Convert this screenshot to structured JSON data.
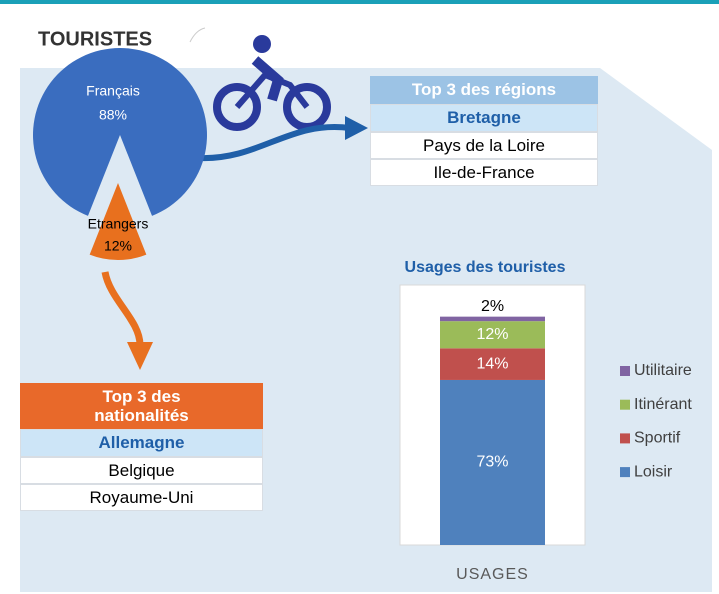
{
  "title": "TOURISTES",
  "regions": {
    "title": "Top 3 des régions",
    "rows": [
      "Bretagne",
      "Pays de la Loire",
      "Ile-de-France"
    ]
  },
  "nationalities": {
    "title": "Top 3 des nationalités",
    "rows": [
      "Allemagne",
      "Belgique",
      "Royaume-Uni"
    ]
  },
  "chart_data": [
    {
      "type": "pie",
      "categories": [
        "Français",
        "Etrangers"
      ],
      "values": [
        88,
        12
      ],
      "value_labels": [
        "88%",
        "12%"
      ],
      "colors": [
        "#3a6dbf",
        "#e8701e"
      ]
    },
    {
      "type": "stacked_bar",
      "title": "Usages des touristes",
      "categories": [
        "USAGES"
      ],
      "ylim": [
        0,
        115
      ],
      "legend": "right",
      "series": [
        {
          "name": "Loisir",
          "color": "#4f81bd",
          "values": [
            73
          ],
          "value_labels": [
            "73%"
          ]
        },
        {
          "name": "Sportif",
          "color": "#c0504d",
          "values": [
            14
          ],
          "value_labels": [
            "14%"
          ]
        },
        {
          "name": "Itinérant",
          "color": "#9bbb59",
          "values": [
            12
          ],
          "value_labels": [
            "12%"
          ]
        },
        {
          "name": "Utilitaire",
          "color": "#8064a2",
          "values": [
            2
          ],
          "value_labels": [
            "2%"
          ]
        }
      ]
    }
  ]
}
